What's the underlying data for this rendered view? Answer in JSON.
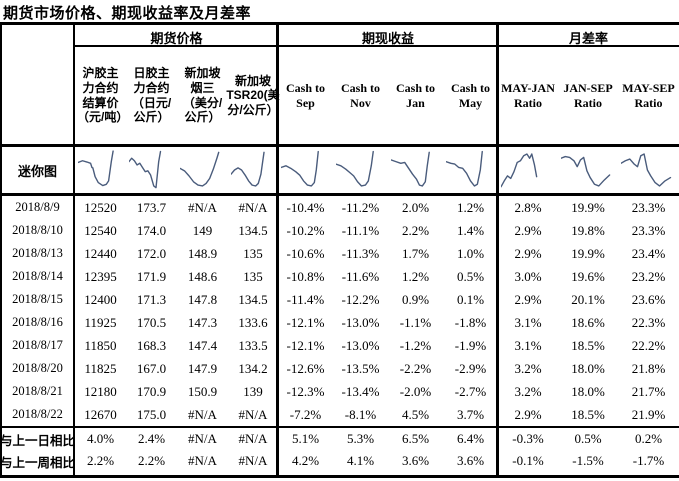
{
  "title": "期货市场价格、期现收益率及月差率",
  "table": {
    "groups": [
      {
        "label": "期货价格",
        "span": 4
      },
      {
        "label": "期现收益",
        "span": 4
      },
      {
        "label": "月差率",
        "span": 3
      }
    ],
    "columns": [
      "沪胶主力合约结算价（元/吨）",
      "日胶主力合约（日元/公斤）",
      "新加坡烟三（美分/公斤）",
      "新加坡TSR20(美分/公斤）",
      "Cash to Sep",
      "Cash to Nov",
      "Cash to Jan",
      "Cash to May",
      "MAY-JAN Ratio",
      "JAN-SEP Ratio",
      "MAY-SEP Ratio"
    ],
    "sparkline_row_label": "迷你图",
    "sparkline_color": "#4a5c7c",
    "sparklines": [
      [
        [
          0,
          32
        ],
        [
          10,
          28
        ],
        [
          20,
          31
        ],
        [
          28,
          34
        ],
        [
          31,
          44
        ],
        [
          33,
          45
        ],
        [
          38,
          66
        ],
        [
          45,
          80
        ],
        [
          55,
          87
        ],
        [
          63,
          84
        ],
        [
          68,
          76
        ],
        [
          74,
          30
        ],
        [
          78,
          5
        ]
      ],
      [
        [
          0,
          30
        ],
        [
          6,
          22
        ],
        [
          12,
          28
        ],
        [
          18,
          38
        ],
        [
          24,
          34
        ],
        [
          30,
          44
        ],
        [
          36,
          54
        ],
        [
          42,
          52
        ],
        [
          48,
          62
        ],
        [
          55,
          88
        ],
        [
          60,
          92
        ],
        [
          66,
          30
        ],
        [
          70,
          6
        ]
      ],
      [
        [
          0,
          46
        ],
        [
          10,
          52
        ],
        [
          20,
          64
        ],
        [
          30,
          78
        ],
        [
          40,
          86
        ],
        [
          50,
          88
        ],
        [
          58,
          82
        ],
        [
          66,
          70
        ],
        [
          74,
          48
        ],
        [
          82,
          22
        ],
        [
          86,
          8
        ]
      ],
      [
        [
          0,
          60
        ],
        [
          8,
          50
        ],
        [
          16,
          45
        ],
        [
          24,
          50
        ],
        [
          32,
          62
        ],
        [
          40,
          76
        ],
        [
          48,
          86
        ],
        [
          56,
          88
        ],
        [
          62,
          82
        ],
        [
          68,
          60
        ],
        [
          72,
          30
        ],
        [
          75,
          8
        ]
      ],
      [
        [
          0,
          44
        ],
        [
          10,
          40
        ],
        [
          20,
          46
        ],
        [
          30,
          54
        ],
        [
          38,
          62
        ],
        [
          46,
          76
        ],
        [
          54,
          86
        ],
        [
          62,
          88
        ],
        [
          68,
          80
        ],
        [
          72,
          50
        ],
        [
          76,
          6
        ]
      ],
      [
        [
          0,
          36
        ],
        [
          10,
          40
        ],
        [
          20,
          48
        ],
        [
          28,
          56
        ],
        [
          36,
          64
        ],
        [
          44,
          78
        ],
        [
          52,
          88
        ],
        [
          60,
          86
        ],
        [
          66,
          76
        ],
        [
          72,
          40
        ],
        [
          76,
          6
        ]
      ],
      [
        [
          0,
          26
        ],
        [
          10,
          30
        ],
        [
          20,
          34
        ],
        [
          28,
          32
        ],
        [
          36,
          46
        ],
        [
          44,
          60
        ],
        [
          52,
          72
        ],
        [
          58,
          86
        ],
        [
          64,
          88
        ],
        [
          70,
          78
        ],
        [
          74,
          40
        ],
        [
          78,
          8
        ]
      ],
      [
        [
          0,
          30
        ],
        [
          10,
          34
        ],
        [
          18,
          36
        ],
        [
          26,
          44
        ],
        [
          34,
          46
        ],
        [
          42,
          58
        ],
        [
          50,
          76
        ],
        [
          58,
          88
        ],
        [
          64,
          84
        ],
        [
          70,
          50
        ],
        [
          74,
          6
        ]
      ],
      [
        [
          0,
          90
        ],
        [
          6,
          76
        ],
        [
          12,
          64
        ],
        [
          18,
          70
        ],
        [
          24,
          54
        ],
        [
          30,
          32
        ],
        [
          36,
          28
        ],
        [
          42,
          16
        ],
        [
          48,
          12
        ],
        [
          53,
          22
        ],
        [
          57,
          12
        ],
        [
          62,
          38
        ],
        [
          66,
          66
        ]
      ],
      [
        [
          0,
          22
        ],
        [
          8,
          18
        ],
        [
          16,
          20
        ],
        [
          24,
          28
        ],
        [
          30,
          42
        ],
        [
          36,
          26
        ],
        [
          42,
          20
        ],
        [
          48,
          52
        ],
        [
          54,
          68
        ],
        [
          62,
          84
        ],
        [
          70,
          88
        ],
        [
          80,
          74
        ],
        [
          90,
          62
        ]
      ],
      [
        [
          0,
          34
        ],
        [
          8,
          28
        ],
        [
          16,
          24
        ],
        [
          24,
          36
        ],
        [
          30,
          42
        ],
        [
          36,
          16
        ],
        [
          42,
          12
        ],
        [
          48,
          50
        ],
        [
          54,
          64
        ],
        [
          62,
          80
        ],
        [
          70,
          88
        ],
        [
          80,
          76
        ],
        [
          90,
          68
        ]
      ]
    ],
    "rows": [
      {
        "label": "2018/8/9",
        "values": [
          "12520",
          "173.7",
          "#N/A",
          "#N/A",
          "-10.4%",
          "-11.2%",
          "2.0%",
          "1.2%",
          "2.8%",
          "19.9%",
          "23.3%"
        ]
      },
      {
        "label": "2018/8/10",
        "values": [
          "12540",
          "174.0",
          "149",
          "134.5",
          "-10.2%",
          "-11.1%",
          "2.2%",
          "1.4%",
          "2.9%",
          "19.8%",
          "23.3%"
        ]
      },
      {
        "label": "2018/8/13",
        "values": [
          "12440",
          "172.0",
          "148.9",
          "135",
          "-10.6%",
          "-11.3%",
          "1.7%",
          "1.0%",
          "2.9%",
          "19.9%",
          "23.4%"
        ]
      },
      {
        "label": "2018/8/14",
        "values": [
          "12395",
          "171.9",
          "148.6",
          "135",
          "-10.8%",
          "-11.6%",
          "1.2%",
          "0.5%",
          "3.0%",
          "19.6%",
          "23.2%"
        ]
      },
      {
        "label": "2018/8/15",
        "values": [
          "12400",
          "171.3",
          "147.8",
          "134.5",
          "-11.4%",
          "-12.2%",
          "0.9%",
          "0.1%",
          "2.9%",
          "20.1%",
          "23.6%"
        ]
      },
      {
        "label": "2018/8/16",
        "values": [
          "11925",
          "170.5",
          "147.3",
          "133.6",
          "-12.1%",
          "-13.0%",
          "-1.1%",
          "-1.8%",
          "3.1%",
          "18.6%",
          "22.3%"
        ]
      },
      {
        "label": "2018/8/17",
        "values": [
          "11850",
          "168.3",
          "147.4",
          "133.5",
          "-12.1%",
          "-13.0%",
          "-1.2%",
          "-1.9%",
          "3.1%",
          "18.5%",
          "22.2%"
        ]
      },
      {
        "label": "2018/8/20",
        "values": [
          "11825",
          "167.0",
          "147.9",
          "134.2",
          "-12.6%",
          "-13.5%",
          "-2.2%",
          "-2.9%",
          "3.2%",
          "18.0%",
          "21.8%"
        ]
      },
      {
        "label": "2018/8/21",
        "values": [
          "12180",
          "170.9",
          "150.9",
          "139",
          "-12.3%",
          "-13.4%",
          "-2.0%",
          "-2.7%",
          "3.2%",
          "18.0%",
          "21.7%"
        ]
      },
      {
        "label": "2018/8/22",
        "values": [
          "12670",
          "175.0",
          "#N/A",
          "#N/A",
          "-7.2%",
          "-8.1%",
          "4.5%",
          "3.7%",
          "2.9%",
          "18.5%",
          "21.9%"
        ]
      }
    ],
    "summary_rows": [
      {
        "label": "与上一日相比",
        "values": [
          "4.0%",
          "2.4%",
          "#N/A",
          "#N/A",
          "5.1%",
          "5.3%",
          "6.5%",
          "6.4%",
          "-0.3%",
          "0.5%",
          "0.2%"
        ]
      },
      {
        "label": "与上一周相比",
        "values": [
          "2.2%",
          "2.2%",
          "#N/A",
          "#N/A",
          "4.2%",
          "4.1%",
          "3.6%",
          "3.6%",
          "-0.1%",
          "-1.5%",
          "-1.7%"
        ]
      }
    ]
  }
}
